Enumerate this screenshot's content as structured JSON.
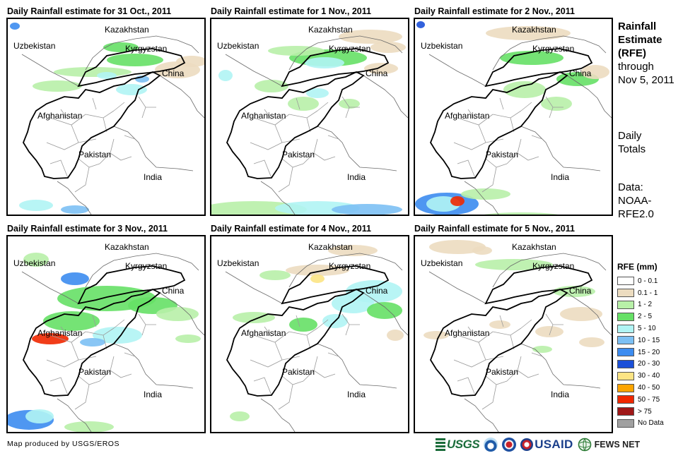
{
  "panels": [
    {
      "title": "Daily Rainfall estimate for 31 Oct., 2011"
    },
    {
      "title": "Daily Rainfall estimate for 1 Nov., 2011"
    },
    {
      "title": "Daily Rainfall estimate for 2 Nov., 2011"
    },
    {
      "title": "Daily Rainfall estimate for 3 Nov., 2011"
    },
    {
      "title": "Daily Rainfall estimate for 4 Nov., 2011"
    },
    {
      "title": "Daily Rainfall estimate for 5 Nov., 2011"
    }
  ],
  "map_labels": {
    "kazakhstan": "Kazakhstan",
    "uzbekistan": "Uzbekistan",
    "kyrgyzstan": "Kyrgyzstan",
    "china": "China",
    "afghanistan": "Afghanistan",
    "pakistan": "Pakistan",
    "india": "India"
  },
  "side": {
    "title_line1": "Rainfall",
    "title_line2": "Estimate",
    "title_line3": "(RFE)",
    "title_line4": "through",
    "title_line5": "Nov 5, 2011",
    "daily_line1": "Daily",
    "daily_line2": "Totals",
    "data_line1": "Data:",
    "data_line2": "NOAA-",
    "data_line3": "RFE2.0"
  },
  "legend": {
    "title": "RFE (mm)",
    "items": [
      {
        "label": "0 - 0.1",
        "color": "#ffffff"
      },
      {
        "label": "0.1 - 1",
        "color": "#ecdcc0"
      },
      {
        "label": "1 - 2",
        "color": "#b8f0a8"
      },
      {
        "label": "2 - 5",
        "color": "#66e066"
      },
      {
        "label": "5 - 10",
        "color": "#b0f4f4"
      },
      {
        "label": "10 - 15",
        "color": "#7cc0f4"
      },
      {
        "label": "15 - 20",
        "color": "#3c8cf0"
      },
      {
        "label": "20 - 30",
        "color": "#1c50d8"
      },
      {
        "label": "30 - 40",
        "color": "#fce484"
      },
      {
        "label": "40 - 50",
        "color": "#fca400"
      },
      {
        "label": "50 - 75",
        "color": "#f02800"
      },
      {
        "label": "> 75",
        "color": "#a01818"
      },
      {
        "label": "No Data",
        "color": "#a0a0a0"
      }
    ]
  },
  "footer": {
    "credit": "Map produced by USGS/EROS",
    "usgs": "USGS",
    "usaid": "USAID",
    "fews": "FEWS NET"
  }
}
